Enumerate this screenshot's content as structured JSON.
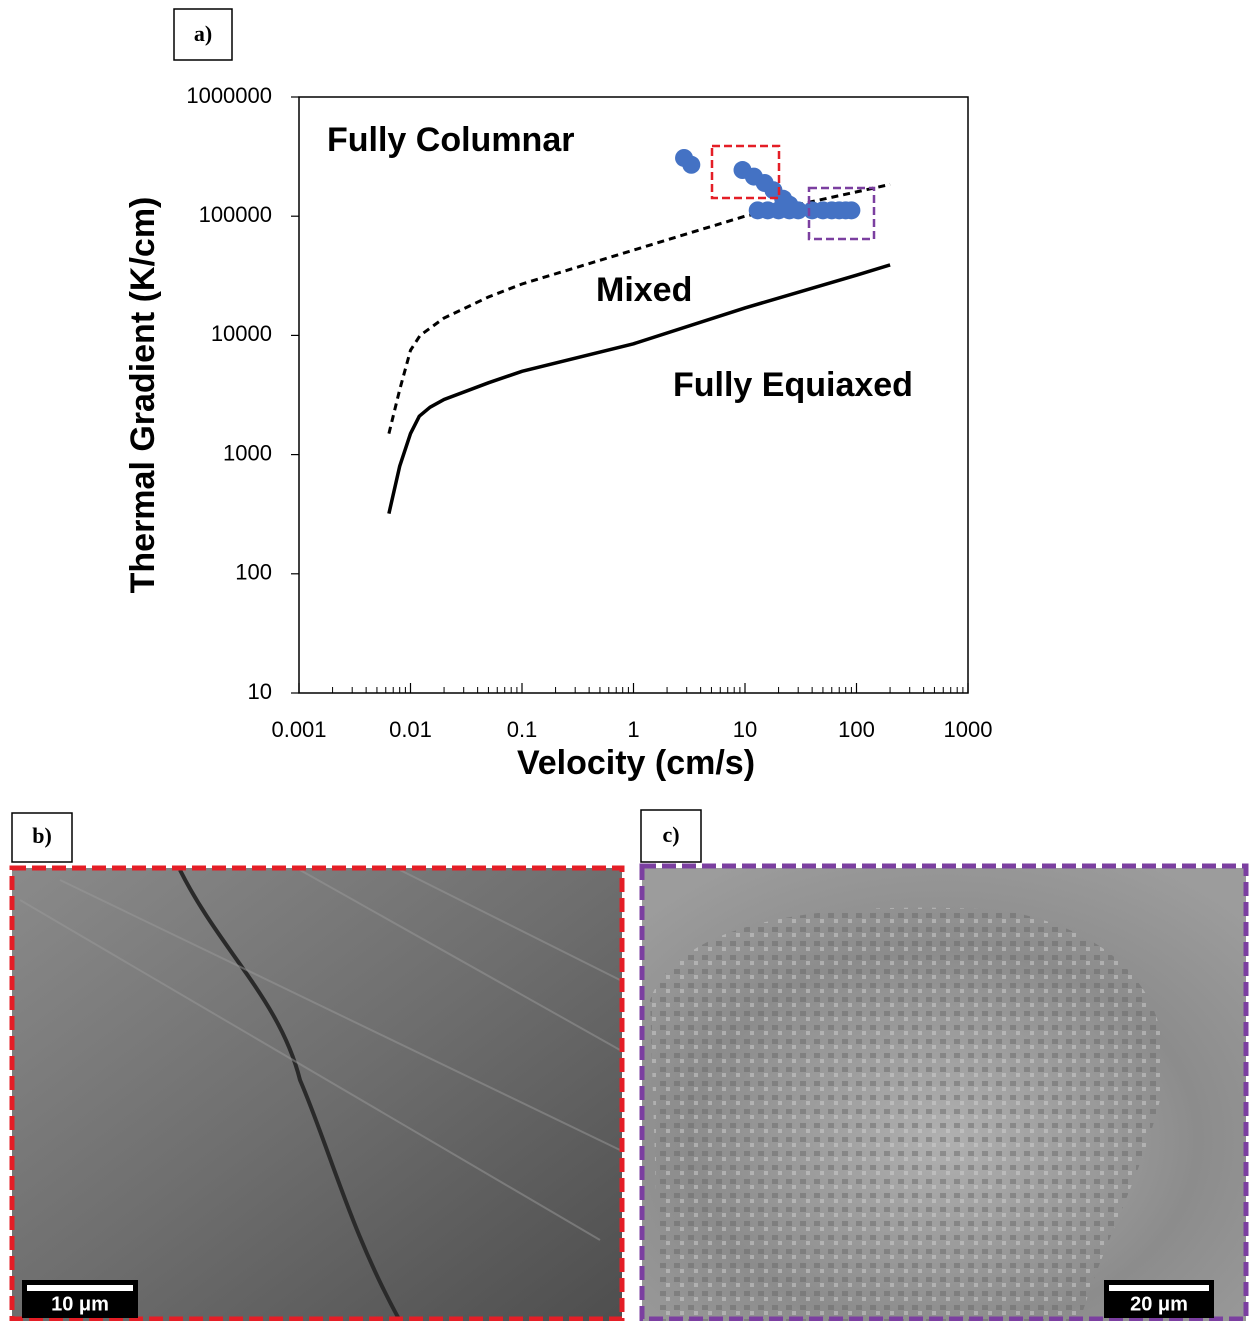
{
  "chart_data": {
    "type": "line",
    "panel_label": "a)",
    "xlabel": "Velocity (cm/s)",
    "ylabel": "Thermal Gradient (K/cm)",
    "xlog": true,
    "ylog": true,
    "xlim": [
      0.001,
      1000
    ],
    "xticks": [
      0.001,
      0.01,
      0.1,
      1,
      10,
      100,
      1000
    ],
    "ylim": [
      10,
      1000000
    ],
    "yticks": [
      10,
      100,
      1000,
      10000,
      100000,
      1000000
    ],
    "annotations": [
      "Fully Columnar",
      "Mixed",
      "Fully Equiaxed"
    ],
    "series": [
      {
        "style": "dashed",
        "color": "#000000",
        "x": [
          0.0064,
          0.008,
          0.01,
          0.0122,
          0.02,
          0.05,
          0.1,
          1,
          10,
          100,
          200
        ],
        "values": [
          1500,
          3500,
          7500,
          10000,
          14000,
          21000,
          27000,
          52000,
          100000,
          160000,
          185000
        ]
      },
      {
        "style": "solid",
        "color": "#000000",
        "x": [
          0.0064,
          0.008,
          0.01,
          0.012,
          0.015,
          0.02,
          0.05,
          0.1,
          1,
          10,
          100,
          200
        ],
        "values": [
          320,
          800,
          1500,
          2100,
          2500,
          2900,
          4000,
          5000,
          8500,
          17000,
          32000,
          39000
        ]
      },
      {
        "style": "markers",
        "color": "#4472c4",
        "x": [
          2.84,
          3.3,
          9.5,
          12,
          15,
          18,
          22,
          25,
          13,
          16,
          20,
          25,
          30,
          40,
          50,
          60,
          70,
          80,
          90
        ],
        "values": [
          308000,
          270000,
          244000,
          215000,
          190000,
          165000,
          140000,
          125000,
          112000,
          112000,
          112000,
          112000,
          112000,
          112000,
          112000,
          112000,
          112000,
          112000,
          112000
        ]
      }
    ]
  },
  "panels": [
    {
      "label": "b)",
      "scale_bar": "10 μm"
    },
    {
      "label": "c)",
      "scale_bar": "20 μm"
    }
  ]
}
